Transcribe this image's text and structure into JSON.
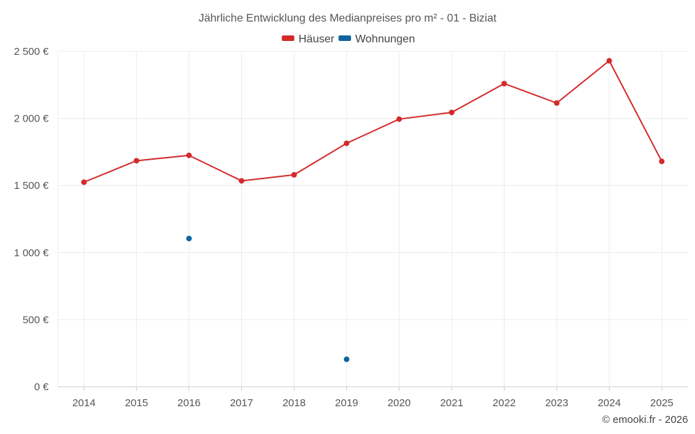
{
  "chart_data": {
    "type": "line",
    "title": "Jährliche Entwicklung des Medianpreises pro m² - 01 - Biziat",
    "categories": [
      "2014",
      "2015",
      "2016",
      "2017",
      "2018",
      "2019",
      "2020",
      "2021",
      "2022",
      "2023",
      "2024",
      "2025"
    ],
    "series": [
      {
        "name": "Häuser",
        "color": "#d42a2a",
        "style": "line+markers",
        "values": [
          1525,
          1685,
          1725,
          1535,
          1580,
          1815,
          1995,
          2045,
          2260,
          2115,
          2430,
          1680
        ]
      },
      {
        "name": "Wohnungen",
        "color": "#0e64a0",
        "style": "markers",
        "values": [
          null,
          null,
          1105,
          null,
          null,
          205,
          null,
          null,
          null,
          null,
          null,
          null
        ]
      }
    ],
    "ylim": [
      0,
      2500
    ],
    "yticks": [
      0,
      500,
      1000,
      1500,
      2000,
      2500
    ],
    "ytick_labels": [
      "0 €",
      "500 €",
      "1 000 €",
      "1 500 €",
      "2 000 €",
      "2 500 €"
    ],
    "legend_position": "top-center",
    "grid": true,
    "xlabel": "",
    "ylabel": ""
  },
  "credit": "© emooki.fr - 2026"
}
